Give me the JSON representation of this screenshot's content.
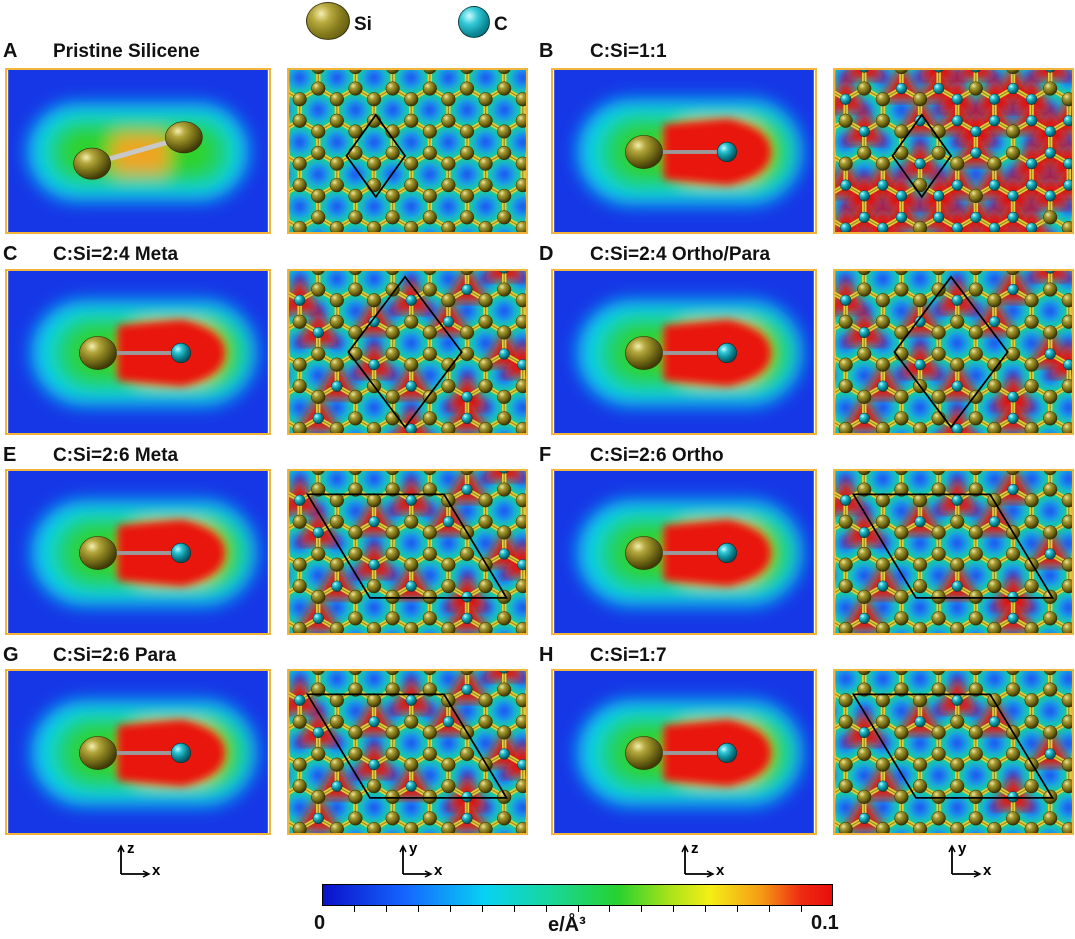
{
  "legend": {
    "si": {
      "label": "Si",
      "icon": "silicon-atom-icon"
    },
    "c": {
      "label": "C",
      "icon": "carbon-atom-icon"
    }
  },
  "panels": [
    {
      "letter": "A",
      "title": "Pristine Silicene",
      "bond": "Si-Si"
    },
    {
      "letter": "B",
      "title": "C:Si=1:1",
      "bond": "Si-C"
    },
    {
      "letter": "C",
      "title": "C:Si=2:4 Meta",
      "bond": "Si-C"
    },
    {
      "letter": "D",
      "title": "C:Si=2:4 Ortho/Para",
      "bond": "Si-C"
    },
    {
      "letter": "E",
      "title": "C:Si=2:6 Meta",
      "bond": "Si-C"
    },
    {
      "letter": "F",
      "title": "C:Si=2:6 Ortho",
      "bond": "Si-C"
    },
    {
      "letter": "G",
      "title": "C:Si=2:6 Para",
      "bond": "Si-C"
    },
    {
      "letter": "H",
      "title": "C:Si=1:7",
      "bond": "Si-C"
    }
  ],
  "axes": {
    "side": {
      "vertical": "z",
      "horizontal": "x"
    },
    "top": {
      "vertical": "y",
      "horizontal": "x"
    }
  },
  "colorbar": {
    "min_label": "0",
    "max_label": "0.1",
    "unit_label": "e/Å³",
    "min": 0,
    "max": 0.1,
    "ticks": 16,
    "colors": [
      "#0a10c8",
      "#1565ff",
      "#08d2f2",
      "#27d22e",
      "#f4ef16",
      "#f59c14",
      "#e80e0e"
    ]
  },
  "colors": {
    "frame": "#f2b43a",
    "silicon": "#837a1c",
    "carbon": "#0e8d9b",
    "low_density": "#1a3df0",
    "high_density": "#e81010",
    "cell_outline": "#000000"
  }
}
